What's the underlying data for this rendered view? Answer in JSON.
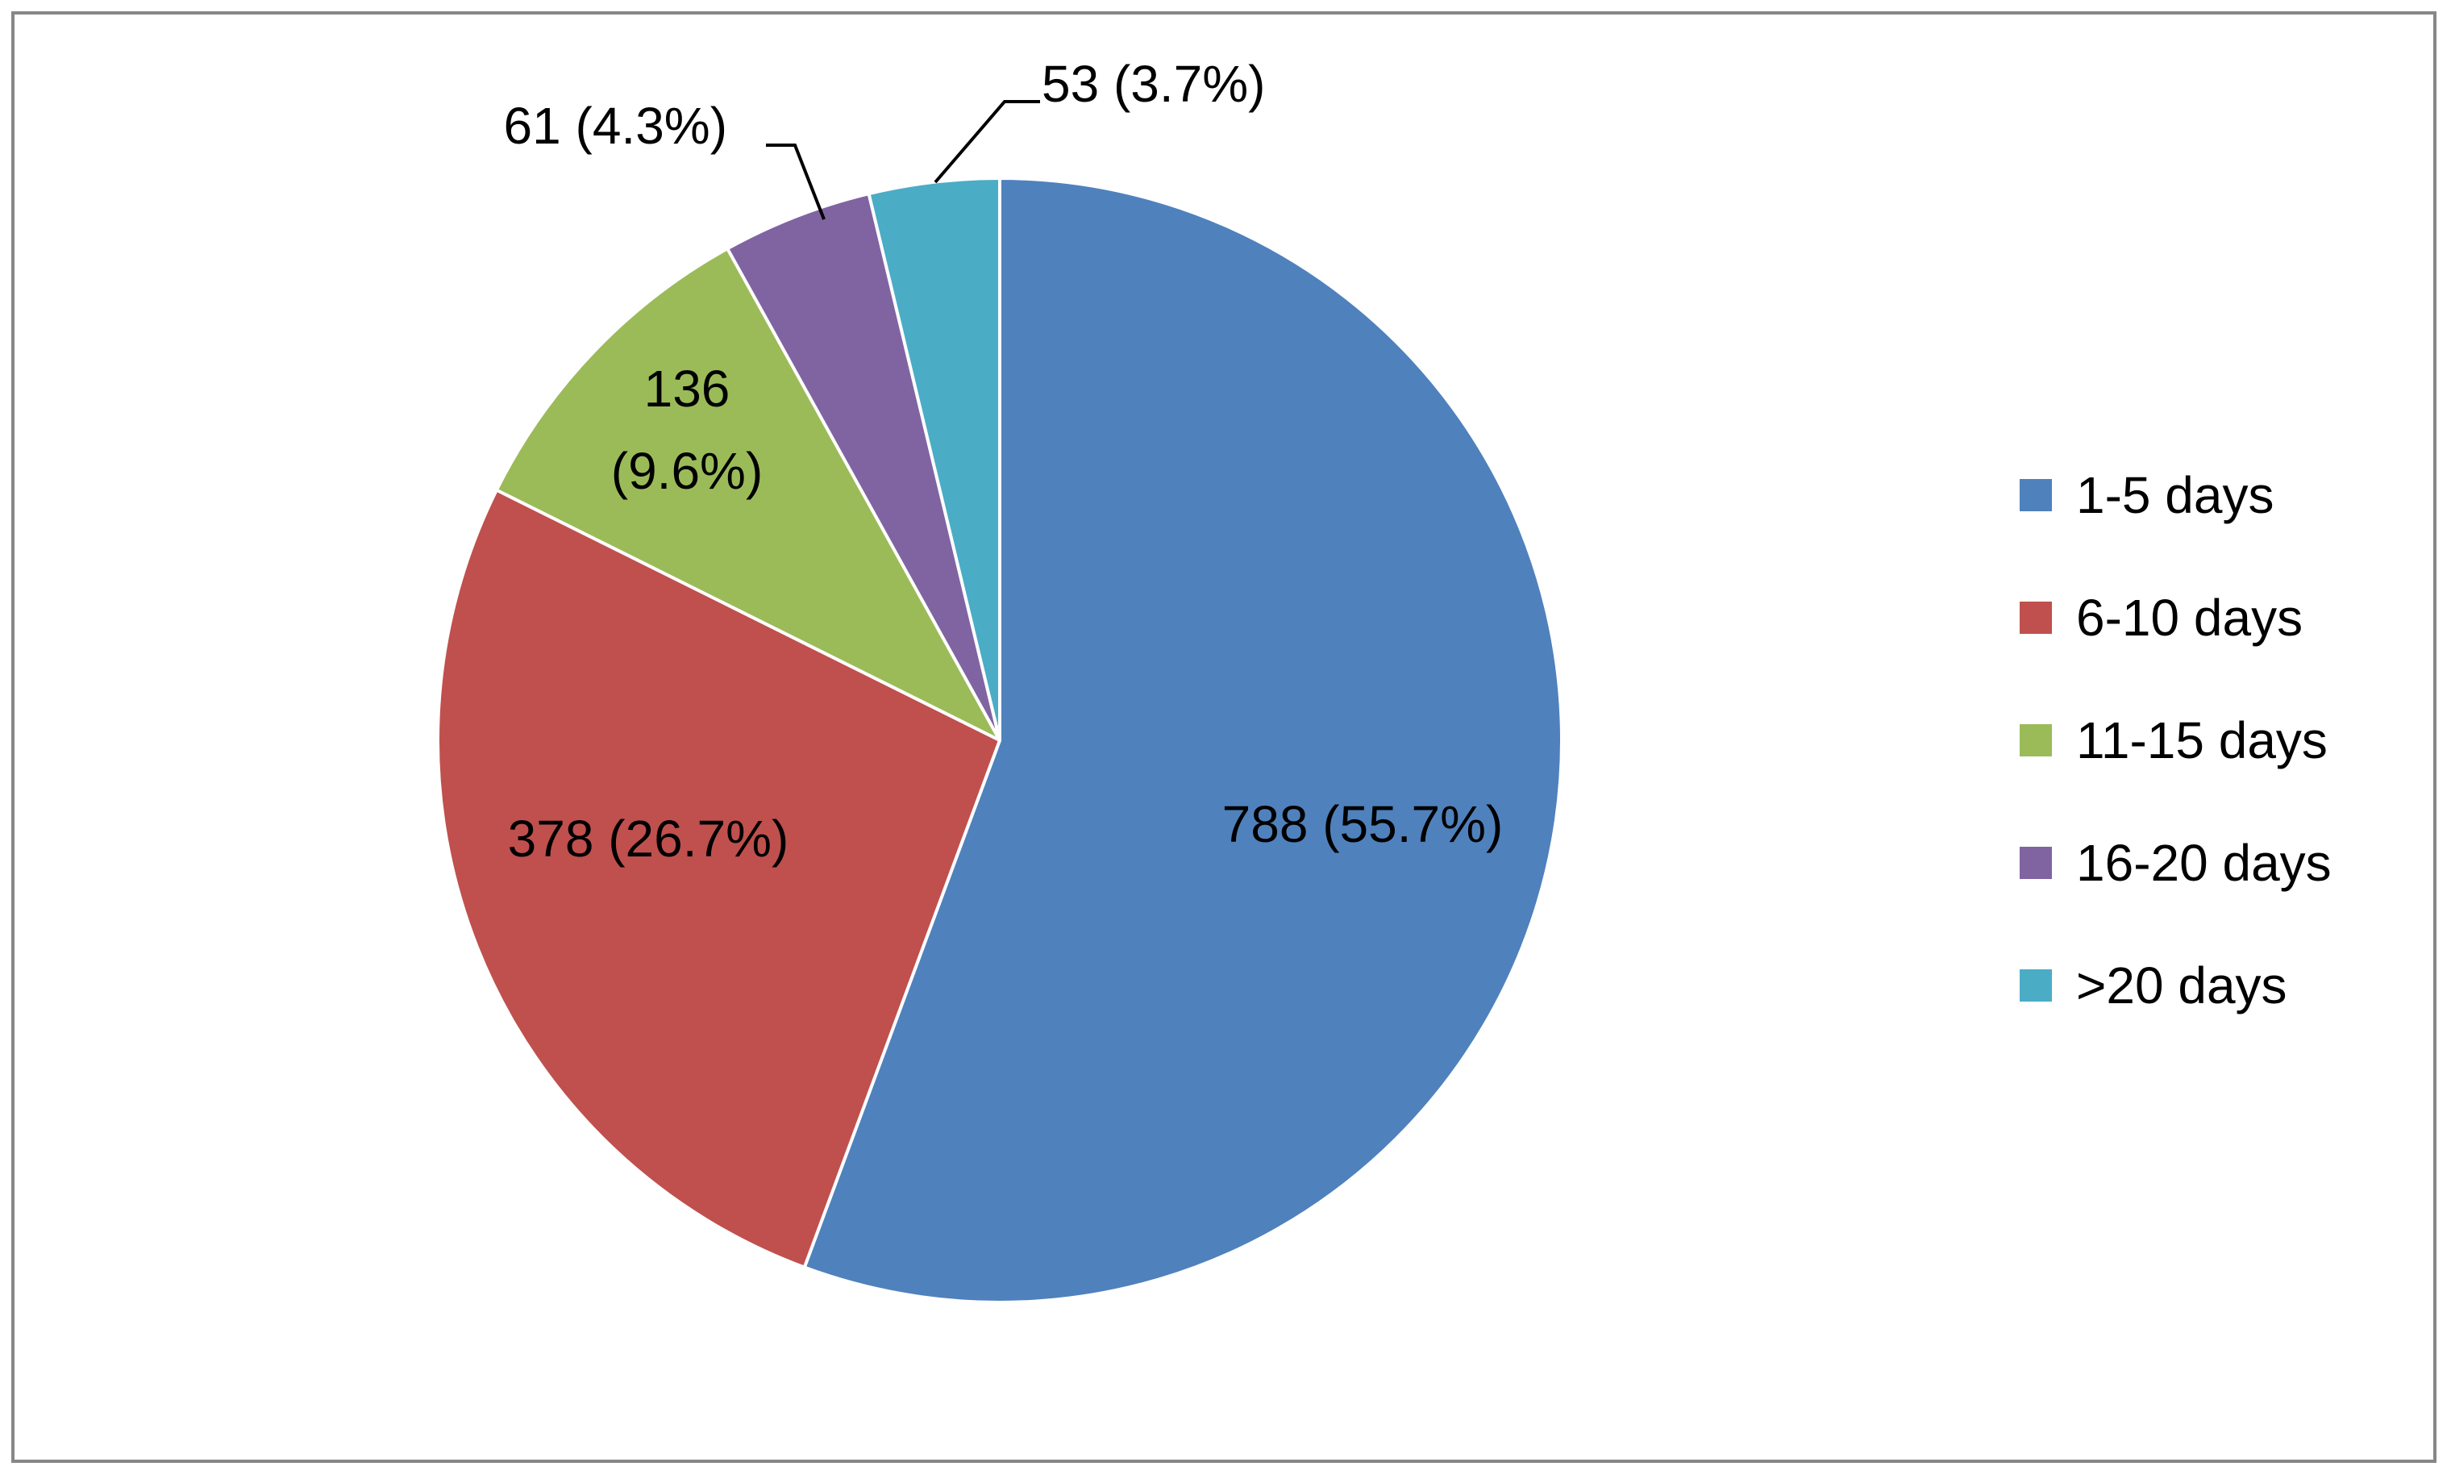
{
  "chart_data": {
    "type": "pie",
    "title": "",
    "categories": [
      "1-5 days",
      "6-10 days",
      "11-15 days",
      "16-20 days",
      ">20 days"
    ],
    "values": [
      788,
      378,
      136,
      61,
      53
    ],
    "percentages": [
      55.7,
      26.7,
      9.6,
      4.3,
      3.7
    ],
    "data_labels": [
      "788 (55.7%)",
      "378 (26.7%)",
      "136 (9.6%)",
      "61 (4.3%)",
      "53 (3.7%)"
    ],
    "colors": [
      "#4F81BD",
      "#C0504D",
      "#9BBB59",
      "#8064A2",
      "#4BACC6"
    ],
    "legend_position": "right",
    "start_angle": "top, clockwise"
  }
}
